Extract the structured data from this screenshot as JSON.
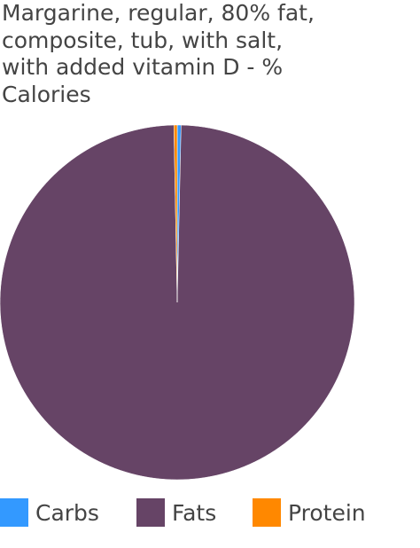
{
  "chart_data": {
    "type": "pie",
    "title": "Margarine, regular, 80% fat,\ncomposite, tub, with salt,\nwith added vitamin D - %\nCalories",
    "slices": [
      {
        "name": "Carbs",
        "value": 0.35,
        "color": "#3399ff"
      },
      {
        "name": "Fats",
        "value": 99.35,
        "color": "#664466"
      },
      {
        "name": "Protein",
        "value": 0.3,
        "color": "#ff8800"
      }
    ],
    "legend": "bottom"
  }
}
